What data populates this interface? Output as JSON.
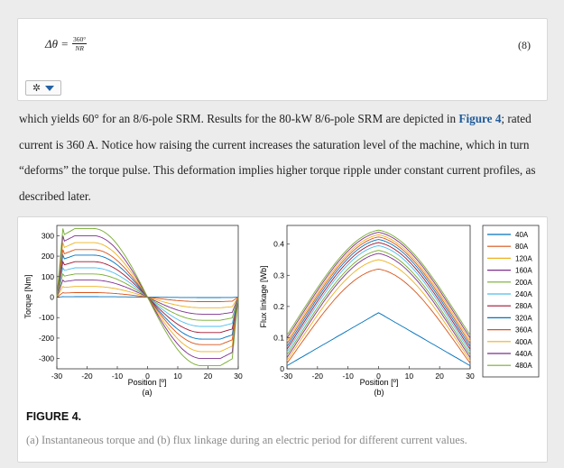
{
  "equation": {
    "lhs": "Δθ =",
    "numerator": "360°",
    "denominator": "NR",
    "number": "(8)",
    "tool_icon": "gear-icon"
  },
  "paragraph": {
    "text_before": "which yields 60° for an 8/6-pole SRM. Results for the 80-kW 8/6-pole SRM are depicted in ",
    "link": "Figure 4",
    "text_after": "; rated current is 360 A. Notice how raising the current increases the saturation level of the machine, which in turn “deforms” the torque pulse. This deformation implies higher torque ripple under constant current profiles, as described later."
  },
  "figure": {
    "label": "FIGURE 4.",
    "caption": "(a) Instantaneous torque and (b) flux linkage during an electric period for different current values."
  },
  "chart_data": [
    {
      "type": "line",
      "panel": "(a)",
      "xlabel": "Position [º]",
      "ylabel": "Torque [Nm]",
      "xlim": [
        -30,
        30
      ],
      "ylim": [
        -350,
        350
      ],
      "xticks": [
        "-30",
        "-20",
        "-10",
        "0",
        "10",
        "20",
        "30"
      ],
      "yticks": [
        "300",
        "200",
        "100",
        "0",
        "-100",
        "-200",
        "-300"
      ],
      "currents": [
        40,
        80,
        120,
        160,
        200,
        240,
        280,
        320,
        360,
        400,
        440,
        480
      ],
      "peak_torque": [
        2,
        22,
        52,
        83,
        113,
        143,
        173,
        205,
        232,
        266,
        300,
        335
      ]
    },
    {
      "type": "line",
      "panel": "(b)",
      "xlabel": "Position [º]",
      "ylabel": "Flux linkage [Wb]",
      "xlim": [
        -30,
        30
      ],
      "ylim": [
        0,
        0.46
      ],
      "xticks": [
        "-30",
        "-20",
        "-10",
        "0",
        "10",
        "20",
        "30"
      ],
      "yticks": [
        "0.4",
        "0.3",
        "0.2",
        "0.1",
        "0"
      ],
      "peak_flux": [
        0.18,
        0.32,
        0.35,
        0.37,
        0.38,
        0.395,
        0.405,
        0.415,
        0.423,
        0.43,
        0.438,
        0.445
      ],
      "end_flux": [
        0.01,
        0.018,
        0.027,
        0.036,
        0.045,
        0.054,
        0.063,
        0.072,
        0.081,
        0.09,
        0.099,
        0.108
      ]
    }
  ],
  "legend": {
    "entries": [
      "40A",
      "80A",
      "120A",
      "160A",
      "200A",
      "240A",
      "280A",
      "320A",
      "360A",
      "400A",
      "440A",
      "480A"
    ],
    "colors": [
      "#0072bd",
      "#d95319",
      "#edb120",
      "#7e2f8e",
      "#77ac30",
      "#4dbeee",
      "#a2142f",
      "#0072bd",
      "#d95319",
      "#edb120",
      "#7e2f8e",
      "#77ac30"
    ]
  }
}
